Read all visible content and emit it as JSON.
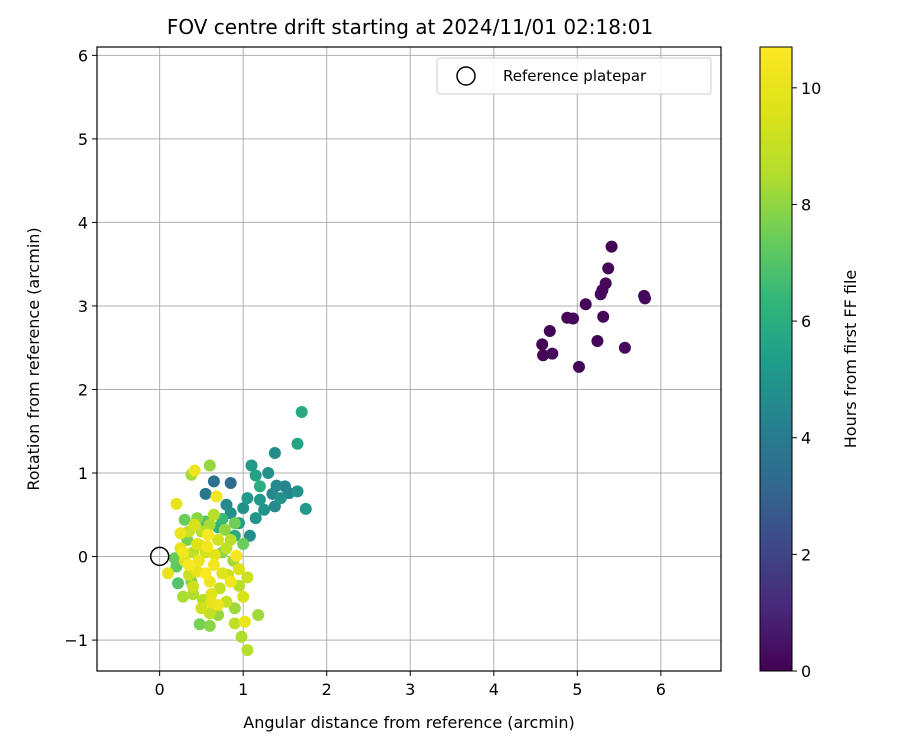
{
  "chart_data": {
    "type": "scatter",
    "title": "FOV centre drift starting at 2024/11/01 02:18:01",
    "xlabel": "Angular distance from reference (arcmin)",
    "ylabel": "Rotation from reference (arcmin)",
    "xlim": [
      -0.75,
      6.72
    ],
    "ylim": [
      -1.37,
      6.1
    ],
    "xticks": [
      0,
      1,
      2,
      3,
      4,
      5,
      6
    ],
    "yticks": [
      -1,
      0,
      1,
      2,
      3,
      4,
      5,
      6
    ],
    "xtick_labels": [
      "0",
      "1",
      "2",
      "3",
      "4",
      "5",
      "6"
    ],
    "ytick_labels": [
      "−1",
      "0",
      "1",
      "2",
      "3",
      "4",
      "5",
      "6"
    ],
    "grid": true,
    "colormap": "viridis",
    "colorbar": {
      "label": "Hours from first FF file",
      "range": [
        0,
        10.7
      ],
      "ticks": [
        0,
        2,
        4,
        6,
        8,
        10
      ],
      "tick_labels": [
        "0",
        "2",
        "4",
        "6",
        "8",
        "10"
      ]
    },
    "legend": {
      "placement": "upper right",
      "entries": [
        {
          "label": "Reference platepar",
          "marker": "open-circle",
          "color": "#000000"
        }
      ]
    },
    "reference_point": {
      "x": 0,
      "y": 0
    },
    "series": [
      {
        "marker": "filled-circle",
        "points": [
          [
            5.41,
            3.71,
            0.1
          ],
          [
            5.37,
            3.45,
            0.2
          ],
          [
            5.34,
            3.27,
            0.2
          ],
          [
            5.3,
            3.19,
            0.1
          ],
          [
            5.28,
            3.14,
            0.2
          ],
          [
            5.1,
            3.02,
            0.1
          ],
          [
            4.95,
            2.85,
            0.2
          ],
          [
            4.88,
            2.86,
            0.1
          ],
          [
            5.31,
            2.87,
            0.2
          ],
          [
            4.67,
            2.7,
            0.1
          ],
          [
            4.58,
            2.54,
            0.1
          ],
          [
            4.59,
            2.41,
            0.1
          ],
          [
            4.7,
            2.43,
            0.2
          ],
          [
            5.24,
            2.58,
            0.1
          ],
          [
            5.57,
            2.5,
            0.2
          ],
          [
            5.02,
            2.27,
            0.1
          ],
          [
            5.8,
            3.12,
            0.1
          ],
          [
            5.81,
            3.09,
            0.2
          ],
          [
            1.7,
            1.73,
            5.8
          ],
          [
            1.65,
            1.35,
            5.6
          ],
          [
            1.75,
            0.57,
            5.2
          ],
          [
            1.65,
            0.78,
            5.0
          ],
          [
            1.38,
            1.24,
            4.7
          ],
          [
            1.1,
            1.09,
            5.2
          ],
          [
            1.3,
            1.0,
            4.8
          ],
          [
            1.15,
            0.97,
            5.5
          ],
          [
            1.4,
            0.85,
            4.6
          ],
          [
            1.5,
            0.84,
            4.4
          ],
          [
            1.35,
            0.75,
            4.5
          ],
          [
            1.45,
            0.7,
            4.9
          ],
          [
            1.55,
            0.76,
            4.5
          ],
          [
            1.38,
            0.6,
            4.6
          ],
          [
            1.2,
            0.68,
            5.1
          ],
          [
            1.25,
            0.56,
            4.9
          ],
          [
            1.15,
            0.46,
            5.0
          ],
          [
            1.08,
            0.25,
            4.8
          ],
          [
            1.0,
            0.58,
            4.9
          ],
          [
            1.05,
            0.7,
            5.2
          ],
          [
            0.95,
            0.4,
            5.4
          ],
          [
            0.85,
            0.52,
            4.8
          ],
          [
            0.8,
            0.62,
            4.6
          ],
          [
            0.65,
            0.9,
            3.6
          ],
          [
            0.85,
            0.88,
            3.4
          ],
          [
            0.55,
            0.75,
            3.8
          ],
          [
            0.9,
            0.25,
            5.9
          ],
          [
            1.2,
            0.84,
            6.0
          ],
          [
            0.7,
            0.35,
            6.2
          ],
          [
            0.75,
            0.45,
            6.5
          ],
          [
            0.6,
            1.09,
            8.1
          ],
          [
            0.38,
            0.98,
            8.3
          ],
          [
            0.42,
            1.03,
            10.2
          ],
          [
            0.68,
            0.72,
            10.3
          ],
          [
            0.2,
            0.63,
            10.0
          ],
          [
            0.3,
            0.44,
            7.4
          ],
          [
            0.45,
            0.46,
            7.9
          ],
          [
            0.55,
            0.42,
            7.0
          ],
          [
            0.65,
            0.5,
            8.6
          ],
          [
            0.35,
            0.3,
            9.1
          ],
          [
            0.25,
            0.28,
            10.1
          ],
          [
            0.58,
            0.26,
            10.5
          ],
          [
            0.48,
            0.14,
            9.4
          ],
          [
            0.4,
            0.05,
            8.8
          ],
          [
            0.3,
            -0.05,
            9.6
          ],
          [
            0.2,
            -0.12,
            7.2
          ],
          [
            0.1,
            -0.2,
            9.9
          ],
          [
            0.22,
            -0.32,
            7.0
          ],
          [
            0.28,
            -0.48,
            8.4
          ],
          [
            0.4,
            -0.36,
            9.2
          ],
          [
            0.52,
            -0.52,
            8.6
          ],
          [
            0.62,
            -0.45,
            9.8
          ],
          [
            0.7,
            -0.58,
            10.2
          ],
          [
            0.8,
            -0.54,
            9.0
          ],
          [
            0.9,
            -0.62,
            8.2
          ],
          [
            1.0,
            -0.48,
            9.5
          ],
          [
            0.9,
            -0.8,
            8.8
          ],
          [
            0.98,
            -0.96,
            8.5
          ],
          [
            1.18,
            -0.7,
            8.2
          ],
          [
            1.02,
            -0.78,
            10.1
          ],
          [
            0.48,
            -0.81,
            7.6
          ],
          [
            0.6,
            -0.83,
            7.9
          ],
          [
            0.92,
            0.01,
            10.5
          ],
          [
            0.85,
            -0.3,
            10.3
          ],
          [
            1.05,
            -1.12,
            8.6
          ],
          [
            0.6,
            -0.68,
            8.9
          ],
          [
            0.75,
            -0.2,
            9.7
          ],
          [
            0.65,
            -0.1,
            10.4
          ],
          [
            0.55,
            0.05,
            9.3
          ],
          [
            0.45,
            -0.18,
            10.0
          ],
          [
            0.35,
            -0.22,
            9.1
          ],
          [
            0.25,
            0.1,
            9.9
          ],
          [
            0.5,
            0.3,
            8.7
          ],
          [
            0.7,
            0.2,
            9.4
          ],
          [
            0.8,
            0.1,
            8.9
          ],
          [
            0.95,
            -0.15,
            9.6
          ],
          [
            0.6,
            -0.3,
            10.2
          ],
          [
            0.4,
            -0.45,
            8.5
          ],
          [
            0.72,
            -0.38,
            9.0
          ],
          [
            0.88,
            -0.05,
            8.3
          ],
          [
            0.33,
            0.2,
            7.6
          ],
          [
            0.18,
            -0.02,
            7.3
          ],
          [
            0.55,
            -0.2,
            10.6
          ],
          [
            0.66,
            0.02,
            9.8
          ],
          [
            0.78,
            0.32,
            8.0
          ],
          [
            0.9,
            0.4,
            7.5
          ],
          [
            0.42,
            0.38,
            9.5
          ],
          [
            0.6,
            0.38,
            8.4
          ],
          [
            0.28,
            0.05,
            10.3
          ],
          [
            0.35,
            -0.1,
            10.6
          ],
          [
            0.47,
            -0.05,
            10.1
          ],
          [
            0.57,
            0.12,
            10.4
          ],
          [
            0.82,
            -0.22,
            9.2
          ],
          [
            0.95,
            -0.35,
            8.7
          ],
          [
            0.7,
            -0.7,
            8.1
          ],
          [
            0.5,
            -0.62,
            9.3
          ],
          [
            0.38,
            -0.3,
            7.8
          ],
          [
            0.62,
            -0.55,
            10.0
          ],
          [
            0.75,
            0.05,
            7.9
          ],
          [
            0.85,
            0.2,
            8.6
          ],
          [
            1.0,
            0.15,
            7.4
          ],
          [
            1.05,
            -0.25,
            9.1
          ],
          [
            0.58,
            0.26,
            10.6
          ],
          [
            0.45,
            0.15,
            9.7
          ]
        ]
      }
    ]
  }
}
